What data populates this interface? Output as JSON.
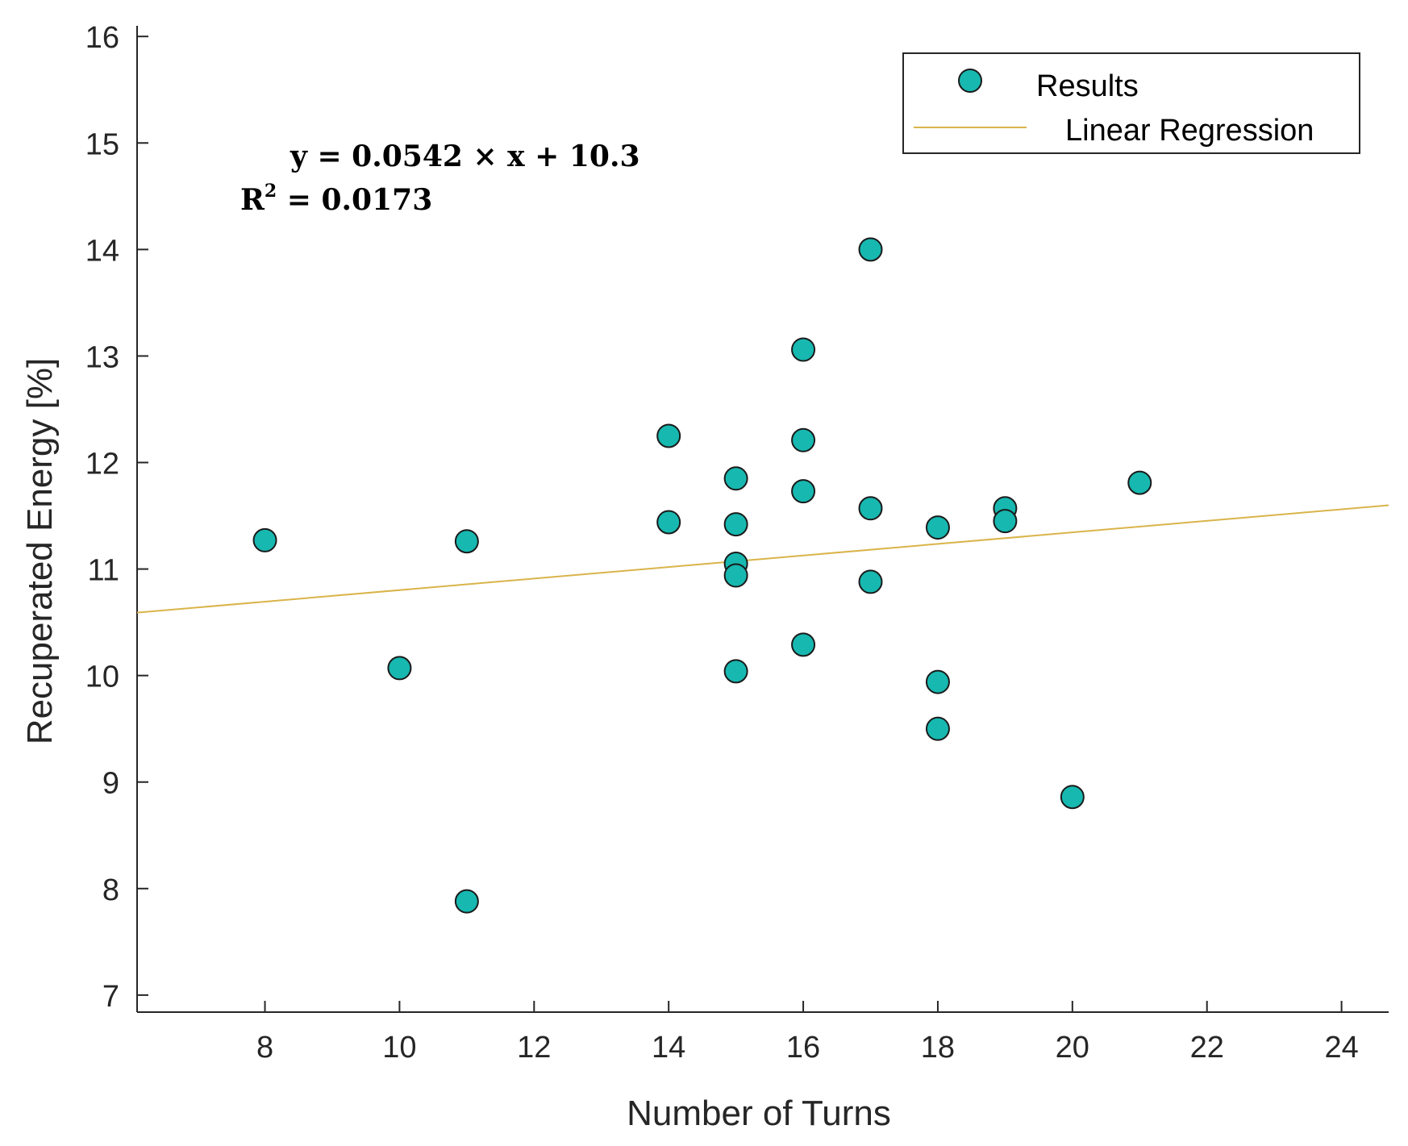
{
  "chart_data": {
    "type": "scatter",
    "xlabel": "Number of Turns",
    "ylabel": "Recuperated Energy [%]",
    "xlim": [
      6.1,
      24.7
    ],
    "ylim": [
      6.84,
      16.1
    ],
    "xticks": [
      8,
      10,
      12,
      14,
      16,
      18,
      20,
      22,
      24
    ],
    "yticks": [
      7,
      8,
      9,
      10,
      11,
      12,
      13,
      14,
      15,
      16
    ],
    "legend_position": "top-right",
    "series": [
      {
        "name": "Results",
        "kind": "scatter",
        "color": "#17b8b0",
        "points": [
          [
            8,
            11.27
          ],
          [
            10,
            10.07
          ],
          [
            11,
            11.26
          ],
          [
            11,
            7.88
          ],
          [
            14,
            12.25
          ],
          [
            14,
            11.44
          ],
          [
            15,
            11.85
          ],
          [
            15,
            11.42
          ],
          [
            15,
            11.05
          ],
          [
            15,
            10.94
          ],
          [
            15,
            10.04
          ],
          [
            16,
            13.06
          ],
          [
            16,
            12.21
          ],
          [
            16,
            11.73
          ],
          [
            16,
            10.29
          ],
          [
            17,
            14.0
          ],
          [
            17,
            11.57
          ],
          [
            17,
            10.88
          ],
          [
            18,
            11.39
          ],
          [
            18,
            9.94
          ],
          [
            18,
            9.5
          ],
          [
            19,
            11.57
          ],
          [
            19,
            11.45
          ],
          [
            20,
            8.86
          ],
          [
            21,
            11.81
          ]
        ]
      },
      {
        "name": "Linear Regression",
        "kind": "line",
        "color": "#d9b44a",
        "slope": 0.0542,
        "intercept": 10.26
      }
    ],
    "annotations": {
      "equation": "y = 0.0542 × x + 10.3",
      "r2_prefix": "R",
      "r2_exponent": "2",
      "r2_value": " = 0.0173"
    }
  }
}
